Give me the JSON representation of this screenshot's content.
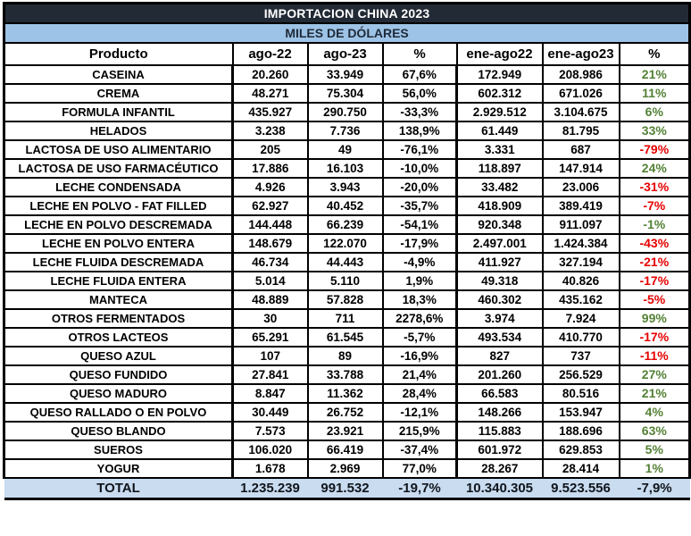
{
  "title": "IMPORTACION CHINA 2023",
  "subtitle": "MILES DE DÓLARES",
  "colors": {
    "title_bg": "#222A35",
    "title_text": "#FFFFFF",
    "subtitle_bg": "#9DC3E6",
    "subtitle_text": "#1F2A38",
    "total_bg": "#C9DCF0",
    "total_text": "#10151C",
    "green": "#538135",
    "red": "#E60000",
    "border": "#000000"
  },
  "chart_data": {
    "type": "table",
    "title": "IMPORTACION CHINA 2023",
    "subtitle": "MILES DE DÓLARES",
    "columns": [
      "Producto",
      "ago-22",
      "ago-23",
      "%",
      "ene-ago22",
      "ene-ago23",
      "%"
    ],
    "rows": [
      {
        "product": "CASEINA",
        "ago22": "20.260",
        "ago23": "33.949",
        "pct1": "67,6%",
        "ene22": "172.949",
        "ene23": "208.986",
        "pct2": "21%",
        "pct2_color": "green"
      },
      {
        "product": "CREMA",
        "ago22": "48.271",
        "ago23": "75.304",
        "pct1": "56,0%",
        "ene22": "602.312",
        "ene23": "671.026",
        "pct2": "11%",
        "pct2_color": "green"
      },
      {
        "product": "FORMULA INFANTIL",
        "ago22": "435.927",
        "ago23": "290.750",
        "pct1": "-33,3%",
        "ene22": "2.929.512",
        "ene23": "3.104.675",
        "pct2": "6%",
        "pct2_color": "green"
      },
      {
        "product": "HELADOS",
        "ago22": "3.238",
        "ago23": "7.736",
        "pct1": "138,9%",
        "ene22": "61.449",
        "ene23": "81.795",
        "pct2": "33%",
        "pct2_color": "green"
      },
      {
        "product": "LACTOSA DE USO ALIMENTARIO",
        "ago22": "205",
        "ago23": "49",
        "pct1": "-76,1%",
        "ene22": "3.331",
        "ene23": "687",
        "pct2": "-79%",
        "pct2_color": "red"
      },
      {
        "product": "LACTOSA DE USO FARMACÉUTICO",
        "ago22": "17.886",
        "ago23": "16.103",
        "pct1": "-10,0%",
        "ene22": "118.897",
        "ene23": "147.914",
        "pct2": "24%",
        "pct2_color": "green"
      },
      {
        "product": "LECHE CONDENSADA",
        "ago22": "4.926",
        "ago23": "3.943",
        "pct1": "-20,0%",
        "ene22": "33.482",
        "ene23": "23.006",
        "pct2": "-31%",
        "pct2_color": "red"
      },
      {
        "product": "LECHE EN POLVO - FAT FILLED",
        "ago22": "62.927",
        "ago23": "40.452",
        "pct1": "-35,7%",
        "ene22": "418.909",
        "ene23": "389.419",
        "pct2": "-7%",
        "pct2_color": "red"
      },
      {
        "product": "LECHE EN POLVO DESCREMADA",
        "ago22": "144.448",
        "ago23": "66.239",
        "pct1": "-54,1%",
        "ene22": "920.348",
        "ene23": "911.097",
        "pct2": "-1%",
        "pct2_color": "green"
      },
      {
        "product": "LECHE EN POLVO ENTERA",
        "ago22": "148.679",
        "ago23": "122.070",
        "pct1": "-17,9%",
        "ene22": "2.497.001",
        "ene23": "1.424.384",
        "pct2": "-43%",
        "pct2_color": "red"
      },
      {
        "product": "LECHE FLUIDA DESCREMADA",
        "ago22": "46.734",
        "ago23": "44.443",
        "pct1": "-4,9%",
        "ene22": "411.927",
        "ene23": "327.194",
        "pct2": "-21%",
        "pct2_color": "red"
      },
      {
        "product": "LECHE FLUIDA ENTERA",
        "ago22": "5.014",
        "ago23": "5.110",
        "pct1": "1,9%",
        "ene22": "49.318",
        "ene23": "40.826",
        "pct2": "-17%",
        "pct2_color": "red"
      },
      {
        "product": "MANTECA",
        "ago22": "48.889",
        "ago23": "57.828",
        "pct1": "18,3%",
        "ene22": "460.302",
        "ene23": "435.162",
        "pct2": "-5%",
        "pct2_color": "red"
      },
      {
        "product": "OTROS FERMENTADOS",
        "ago22": "30",
        "ago23": "711",
        "pct1": "2278,6%",
        "ene22": "3.974",
        "ene23": "7.924",
        "pct2": "99%",
        "pct2_color": "green"
      },
      {
        "product": "OTROS LACTEOS",
        "ago22": "65.291",
        "ago23": "61.545",
        "pct1": "-5,7%",
        "ene22": "493.534",
        "ene23": "410.770",
        "pct2": "-17%",
        "pct2_color": "red"
      },
      {
        "product": "QUESO AZUL",
        "ago22": "107",
        "ago23": "89",
        "pct1": "-16,9%",
        "ene22": "827",
        "ene23": "737",
        "pct2": "-11%",
        "pct2_color": "red"
      },
      {
        "product": "QUESO FUNDIDO",
        "ago22": "27.841",
        "ago23": "33.788",
        "pct1": "21,4%",
        "ene22": "201.260",
        "ene23": "256.529",
        "pct2": "27%",
        "pct2_color": "green"
      },
      {
        "product": "QUESO MADURO",
        "ago22": "8.847",
        "ago23": "11.362",
        "pct1": "28,4%",
        "ene22": "66.583",
        "ene23": "80.516",
        "pct2": "21%",
        "pct2_color": "green"
      },
      {
        "product": "QUESO RALLADO O EN POLVO",
        "ago22": "30.449",
        "ago23": "26.752",
        "pct1": "-12,1%",
        "ene22": "148.266",
        "ene23": "153.947",
        "pct2": "4%",
        "pct2_color": "green"
      },
      {
        "product": "QUESO BLANDO",
        "ago22": "7.573",
        "ago23": "23.921",
        "pct1": "215,9%",
        "ene22": "115.883",
        "ene23": "188.696",
        "pct2": "63%",
        "pct2_color": "green"
      },
      {
        "product": "SUEROS",
        "ago22": "106.020",
        "ago23": "66.419",
        "pct1": "-37,4%",
        "ene22": "601.972",
        "ene23": "629.853",
        "pct2": "5%",
        "pct2_color": "green"
      },
      {
        "product": "YOGUR",
        "ago22": "1.678",
        "ago23": "2.969",
        "pct1": "77,0%",
        "ene22": "28.267",
        "ene23": "28.414",
        "pct2": "1%",
        "pct2_color": "green"
      }
    ],
    "total": {
      "product": "TOTAL",
      "ago22": "1.235.239",
      "ago23": "991.532",
      "pct1": "-19,7%",
      "ene22": "10.340.305",
      "ene23": "9.523.556",
      "pct2": "-7,9%"
    }
  }
}
